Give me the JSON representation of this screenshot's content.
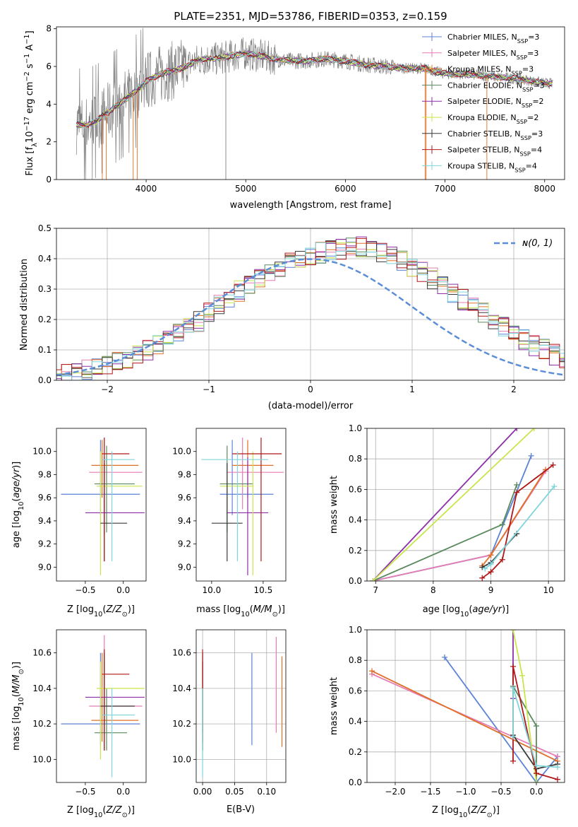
{
  "figure": {
    "title": "PLATE=2351, MJD=53786, FIBERID=0353, z=0.159"
  },
  "colors": {
    "Chabrier MILES": "#5b83d6",
    "Salpeter MILES": "#e57cb3",
    "Kroupa MILES": "#e07028",
    "Chabrier ELODIE": "#5a8a5e",
    "Salpeter ELODIE": "#8e2fa8",
    "Kroupa ELODIE": "#c8e64c",
    "Chabrier STELIB": "#3a3a3a",
    "Salpeter STELIB": "#b01818",
    "Kroupa STELIB": "#7ed6dc",
    "data": "#808080",
    "normal": "#5b8ed6"
  },
  "chart_data": [
    {
      "id": "spectrum",
      "type": "line",
      "xlabel": "wavelength [Angstrom, rest frame]",
      "ylabel": "Flux [f",
      "xlim": [
        3100,
        8200
      ],
      "ylim": [
        0,
        8.1
      ],
      "xticks": [
        "4000",
        "5000",
        "6000",
        "7000",
        "8000"
      ],
      "yticks": [
        "0",
        "2",
        "4",
        "6",
        "8"
      ],
      "legend": "right",
      "series": [
        {
          "name": "Chabrier MILES, N",
          "n": "=3"
        },
        {
          "name": "Salpeter MILES, N",
          "n": "=3"
        },
        {
          "name": "Kroupa MILES, N",
          "n": "=3"
        },
        {
          "name": "Chabrier ELODIE, N",
          "n": "=3"
        },
        {
          "name": "Salpeter ELODIE, N",
          "n": "=2"
        },
        {
          "name": "Kroupa ELODIE, N",
          "n": "=2"
        },
        {
          "name": "Chabrier STELIB, N",
          "n": "=3"
        },
        {
          "name": "Salpeter STELIB, N",
          "n": "=4"
        },
        {
          "name": "Kroupa STELIB, N",
          "n": "=4"
        }
      ],
      "model_continuum": {
        "x": [
          3300,
          3400,
          3500,
          3600,
          3700,
          3800,
          3900,
          4000,
          4100,
          4200,
          4300,
          4400,
          4500,
          4600,
          4700,
          4800,
          4900,
          5000,
          5200,
          5400,
          5600,
          5800,
          6000,
          6200,
          6400,
          6600,
          6800,
          7000,
          7200,
          7400,
          7600,
          7800,
          8000
        ],
        "y": [
          2.9,
          2.9,
          3.1,
          3.5,
          3.9,
          4.3,
          4.7,
          5.2,
          5.5,
          5.7,
          5.8,
          6.0,
          6.3,
          6.4,
          6.4,
          6.5,
          6.6,
          6.7,
          6.5,
          6.3,
          6.3,
          6.4,
          6.3,
          6.1,
          6.0,
          5.9,
          5.9,
          5.6,
          5.6,
          5.5,
          5.4,
          5.3,
          5.1
        ]
      }
    },
    {
      "id": "residuals",
      "type": "step",
      "xlabel": "(data-model)/error",
      "ylabel": "Normed distribution",
      "xlim": [
        -2.5,
        2.5
      ],
      "ylim": [
        0,
        0.5
      ],
      "xticks": [
        "−2",
        "−1",
        "0",
        "1",
        "2"
      ],
      "yticks": [
        "0.0",
        "0.1",
        "0.2",
        "0.3",
        "0.4",
        "0.5"
      ],
      "legend_label": "ɴ(0, 1)",
      "bin_width": 0.1,
      "histogram_base": [
        0.015,
        0.02,
        0.025,
        0.035,
        0.045,
        0.055,
        0.065,
        0.075,
        0.085,
        0.1,
        0.115,
        0.135,
        0.155,
        0.175,
        0.195,
        0.22,
        0.245,
        0.27,
        0.295,
        0.32,
        0.34,
        0.36,
        0.375,
        0.39,
        0.4,
        0.41,
        0.42,
        0.43,
        0.43,
        0.44,
        0.44,
        0.43,
        0.42,
        0.41,
        0.39,
        0.37,
        0.355,
        0.335,
        0.31,
        0.29,
        0.265,
        0.245,
        0.22,
        0.2,
        0.175,
        0.155,
        0.135,
        0.115,
        0.1,
        0.085,
        0.07
      ]
    },
    {
      "id": "age_vs_Z",
      "type": "errorbar",
      "xlabel": "Z [log",
      "ylabel": "age  [log",
      "xlim": [
        -0.88,
        0.3
      ],
      "ylim": [
        8.88,
        10.2
      ],
      "xticks": [
        "−0.5",
        "0.0"
      ],
      "yticks": [
        "9.0",
        "9.2",
        "9.4",
        "9.6",
        "9.8",
        "10.0"
      ],
      "points": [
        {
          "s": "Chabrier MILES",
          "x": -0.3,
          "y": 9.63,
          "xlo": -0.82,
          "xhi": 0.22,
          "ylo": 9.45,
          "yhi": 10.1
        },
        {
          "s": "Salpeter MILES",
          "x": -0.25,
          "y": 9.82,
          "xlo": -0.45,
          "xhi": 0.25,
          "ylo": 9.5,
          "yhi": 10.12
        },
        {
          "s": "Kroupa MILES",
          "x": -0.28,
          "y": 9.88,
          "xlo": -0.42,
          "xhi": 0.2,
          "ylo": 9.6,
          "yhi": 10.1
        },
        {
          "s": "Chabrier ELODIE",
          "x": -0.22,
          "y": 9.72,
          "xlo": -0.38,
          "xhi": 0.15,
          "ylo": 9.3,
          "yhi": 10.05
        },
        {
          "s": "Salpeter ELODIE",
          "x": -0.25,
          "y": 9.47,
          "xlo": -0.5,
          "xhi": 0.28,
          "ylo": 9.28,
          "yhi": 9.95
        },
        {
          "s": "Kroupa ELODIE",
          "x": -0.3,
          "y": 9.7,
          "xlo": -0.35,
          "xhi": 0.25,
          "ylo": 8.93,
          "yhi": 10.0
        },
        {
          "s": "Chabrier STELIB",
          "x": -0.25,
          "y": 9.38,
          "xlo": -0.3,
          "xhi": 0.05,
          "ylo": 9.05,
          "yhi": 9.9
        },
        {
          "s": "Salpeter STELIB",
          "x": -0.25,
          "y": 9.98,
          "xlo": -0.28,
          "xhi": 0.08,
          "ylo": 9.05,
          "yhi": 10.12
        },
        {
          "s": "Kroupa STELIB",
          "x": -0.15,
          "y": 9.93,
          "xlo": -0.28,
          "xhi": 0.15,
          "ylo": 9.05,
          "yhi": 10.0
        }
      ]
    },
    {
      "id": "age_vs_mass",
      "type": "errorbar",
      "xlabel": "mass [log",
      "ylabel": "",
      "xlim": [
        9.85,
        10.72
      ],
      "ylim": [
        8.88,
        10.2
      ],
      "xticks": [
        "10.0",
        "10.5"
      ],
      "yticks": [
        "9.0",
        "9.2",
        "9.4",
        "9.6",
        "9.8",
        "10.0"
      ],
      "points": [
        {
          "s": "Chabrier MILES",
          "x": 10.2,
          "y": 9.63,
          "xlo": 10.08,
          "xhi": 10.6,
          "ylo": 9.45,
          "yhi": 10.1
        },
        {
          "s": "Salpeter MILES",
          "x": 10.3,
          "y": 9.82,
          "xlo": 10.15,
          "xhi": 10.7,
          "ylo": 9.5,
          "yhi": 10.12
        },
        {
          "s": "Kroupa MILES",
          "x": 10.35,
          "y": 9.88,
          "xlo": 10.2,
          "xhi": 10.6,
          "ylo": 9.6,
          "yhi": 10.1
        },
        {
          "s": "Chabrier ELODIE",
          "x": 10.15,
          "y": 9.72,
          "xlo": 10.08,
          "xhi": 10.4,
          "ylo": 9.3,
          "yhi": 10.05
        },
        {
          "s": "Salpeter ELODIE",
          "x": 10.35,
          "y": 9.47,
          "xlo": 10.15,
          "xhi": 10.55,
          "ylo": 8.93,
          "yhi": 9.95
        },
        {
          "s": "Kroupa ELODIE",
          "x": 10.4,
          "y": 9.7,
          "xlo": 10.08,
          "xhi": 10.4,
          "ylo": 8.93,
          "yhi": 10.0
        },
        {
          "s": "Chabrier STELIB",
          "x": 10.15,
          "y": 9.38,
          "xlo": 10.0,
          "xhi": 10.3,
          "ylo": 9.05,
          "yhi": 9.9
        },
        {
          "s": "Salpeter STELIB",
          "x": 10.48,
          "y": 9.98,
          "xlo": 10.2,
          "xhi": 10.68,
          "ylo": 9.05,
          "yhi": 10.12
        },
        {
          "s": "Kroupa STELIB",
          "x": 10.25,
          "y": 9.93,
          "xlo": 9.9,
          "xhi": 10.55,
          "ylo": 9.05,
          "yhi": 10.0
        }
      ]
    },
    {
      "id": "weight_vs_age",
      "type": "line",
      "xlabel": "age  [log",
      "ylabel": "mass weight",
      "xlim": [
        6.85,
        10.28
      ],
      "ylim": [
        0,
        1.0
      ],
      "xticks": [
        "7",
        "8",
        "9",
        "10"
      ],
      "yticks": [
        "0.0",
        "0.2",
        "0.4",
        "0.6",
        "0.8",
        "1.0"
      ],
      "series": [
        {
          "s": "Chabrier MILES",
          "x": [
            6.95,
            9.0,
            9.7
          ],
          "y": [
            0.0,
            0.17,
            0.82
          ]
        },
        {
          "s": "Salpeter MILES",
          "x": [
            6.95,
            9.0,
            9.95
          ],
          "y": [
            0.0,
            0.17,
            0.72
          ]
        },
        {
          "s": "Kroupa MILES",
          "x": [
            8.85,
            9.0,
            9.95
          ],
          "y": [
            0.1,
            0.17,
            0.73
          ]
        },
        {
          "s": "Chabrier ELODIE",
          "x": [
            6.95,
            9.2,
            9.45
          ],
          "y": [
            0.0,
            0.37,
            0.63
          ]
        },
        {
          "s": "Salpeter ELODIE",
          "x": [
            6.95,
            9.45
          ],
          "y": [
            0.0,
            1.0
          ]
        },
        {
          "s": "Kroupa ELODIE",
          "x": [
            6.95,
            9.75
          ],
          "y": [
            0.0,
            1.0
          ]
        },
        {
          "s": "Chabrier STELIB",
          "x": [
            8.85,
            9.0,
            9.45
          ],
          "y": [
            0.09,
            0.12,
            0.31
          ]
        },
        {
          "s": "Salpeter STELIB",
          "x": [
            8.85,
            9.0,
            9.2,
            9.45,
            10.08
          ],
          "y": [
            0.02,
            0.06,
            0.14,
            0.58,
            0.76
          ]
        },
        {
          "s": "Kroupa STELIB",
          "x": [
            8.9,
            9.0,
            10.1
          ],
          "y": [
            0.08,
            0.11,
            0.62
          ]
        }
      ]
    },
    {
      "id": "mass_vs_Z",
      "type": "errorbar",
      "xlabel": "Z [log",
      "ylabel": "mass [log",
      "xlim": [
        -0.88,
        0.3
      ],
      "ylim": [
        9.87,
        10.73
      ],
      "xticks": [
        "−0.5",
        "0.0"
      ],
      "yticks": [
        "10.0",
        "10.2",
        "10.4",
        "10.6"
      ],
      "points": [
        {
          "s": "Chabrier MILES",
          "x": -0.3,
          "y": 10.2,
          "xlo": -0.82,
          "xhi": 0.22,
          "ylo": 10.08,
          "yhi": 10.6
        },
        {
          "s": "Salpeter MILES",
          "x": -0.25,
          "y": 10.3,
          "xlo": -0.45,
          "xhi": 0.25,
          "ylo": 10.15,
          "yhi": 10.7
        },
        {
          "s": "Kroupa MILES",
          "x": -0.28,
          "y": 10.22,
          "xlo": -0.42,
          "xhi": 0.2,
          "ylo": 10.1,
          "yhi": 10.6
        },
        {
          "s": "Chabrier ELODIE",
          "x": -0.22,
          "y": 10.15,
          "xlo": -0.38,
          "xhi": 0.05,
          "ylo": 10.05,
          "yhi": 10.4
        },
        {
          "s": "Salpeter ELODIE",
          "x": -0.25,
          "y": 10.35,
          "xlo": -0.5,
          "xhi": 0.28,
          "ylo": 10.15,
          "yhi": 10.55
        },
        {
          "s": "Kroupa ELODIE",
          "x": -0.3,
          "y": 10.4,
          "xlo": -0.35,
          "xhi": 0.28,
          "ylo": 10.0,
          "yhi": 10.55
        },
        {
          "s": "Chabrier STELIB",
          "x": -0.25,
          "y": 10.3,
          "xlo": -0.3,
          "xhi": 0.15,
          "ylo": 10.05,
          "yhi": 10.6
        },
        {
          "s": "Salpeter STELIB",
          "x": -0.25,
          "y": 10.48,
          "xlo": -0.28,
          "xhi": 0.08,
          "ylo": 10.05,
          "yhi": 10.62
        },
        {
          "s": "Kroupa STELIB",
          "x": -0.15,
          "y": 10.25,
          "xlo": -0.28,
          "xhi": 0.15,
          "ylo": 9.9,
          "yhi": 10.4
        }
      ]
    },
    {
      "id": "mass_vs_ebv",
      "type": "errorbar",
      "xlabel": "E(B-V)",
      "ylabel": "",
      "xlim": [
        -0.01,
        0.13
      ],
      "ylim": [
        9.87,
        10.73
      ],
      "xticks": [
        "0.00",
        "0.05",
        "0.10"
      ],
      "yticks": [
        "10.0",
        "10.2",
        "10.4",
        "10.6"
      ],
      "points": [
        {
          "s": "Chabrier MILES",
          "x": 0.077,
          "y": 10.34,
          "xlo": 0.077,
          "xhi": 0.077,
          "ylo": 10.08,
          "yhi": 10.6
        },
        {
          "s": "Salpeter MILES",
          "x": 0.115,
          "y": 10.42,
          "xlo": 0.115,
          "xhi": 0.115,
          "ylo": 10.15,
          "yhi": 10.69
        },
        {
          "s": "Kroupa MILES",
          "x": 0.124,
          "y": 10.33,
          "xlo": 0.124,
          "xhi": 0.124,
          "ylo": 10.07,
          "yhi": 10.58
        },
        {
          "s": "Chabrier ELODIE",
          "x": 0.0,
          "y": 10.3,
          "xlo": 0.0,
          "xhi": 0.0,
          "ylo": 10.05,
          "yhi": 10.55
        },
        {
          "s": "Salpeter ELODIE",
          "x": 0.0,
          "y": 10.35,
          "xlo": 0.0,
          "xhi": 0.0,
          "ylo": 10.15,
          "yhi": 10.55
        },
        {
          "s": "Kroupa ELODIE",
          "x": 0.0,
          "y": 10.3,
          "xlo": 0.0,
          "xhi": 0.0,
          "ylo": 10.0,
          "yhi": 10.55
        },
        {
          "s": "Chabrier STELIB",
          "x": 0.0,
          "y": 10.3,
          "xlo": 0.0,
          "xhi": 0.0,
          "ylo": 10.05,
          "yhi": 10.6
        },
        {
          "s": "Salpeter STELIB",
          "x": 0.0,
          "y": 10.4,
          "xlo": 0.0,
          "xhi": 0.0,
          "ylo": 10.1,
          "yhi": 10.62
        },
        {
          "s": "Kroupa STELIB",
          "x": 0.0,
          "y": 10.2,
          "xlo": 0.0,
          "xhi": 0.0,
          "ylo": 9.9,
          "yhi": 10.4
        }
      ]
    },
    {
      "id": "weight_vs_Z",
      "type": "line",
      "xlabel": "Z [log",
      "ylabel": "mass weight",
      "xlim": [
        -2.4,
        0.4
      ],
      "ylim": [
        0,
        1.0
      ],
      "xticks": [
        "−2.0",
        "−1.5",
        "−1.0",
        "−0.5",
        "0.0"
      ],
      "yticks": [
        "0.0",
        "0.2",
        "0.4",
        "0.6",
        "0.8",
        "1.0"
      ],
      "series": [
        {
          "s": "Chabrier MILES",
          "x": [
            -1.3,
            0.0,
            0.3
          ],
          "y": [
            0.82,
            0.0,
            0.17
          ]
        },
        {
          "s": "Salpeter MILES",
          "x": [
            -2.33,
            0.3
          ],
          "y": [
            0.71,
            0.17
          ]
        },
        {
          "s": "Kroupa MILES",
          "x": [
            -2.33,
            0.3
          ],
          "y": [
            0.73,
            0.14
          ]
        },
        {
          "s": "Chabrier ELODIE",
          "x": [
            -0.33,
            0.0,
            0.0
          ],
          "y": [
            0.63,
            0.37,
            0.0
          ]
        },
        {
          "s": "Salpeter ELODIE",
          "x": [
            -0.33,
            -0.33
          ],
          "y": [
            1.0,
            0.55
          ]
        },
        {
          "s": "Kroupa ELODIE",
          "x": [
            -0.33,
            -0.2,
            0.0
          ],
          "y": [
            1.0,
            0.7,
            0.0
          ]
        },
        {
          "s": "Chabrier STELIB",
          "x": [
            -0.33,
            0.0,
            0.3
          ],
          "y": [
            0.31,
            0.09,
            0.12
          ]
        },
        {
          "s": "Salpeter STELIB",
          "x": [
            -0.33,
            -0.33,
            0.0,
            0.3
          ],
          "y": [
            0.14,
            0.76,
            0.06,
            0.02
          ]
        },
        {
          "s": "Kroupa STELIB",
          "x": [
            -0.33,
            -0.33,
            0.0,
            0.3
          ],
          "y": [
            0.3,
            0.62,
            0.11,
            0.1
          ]
        }
      ]
    }
  ]
}
